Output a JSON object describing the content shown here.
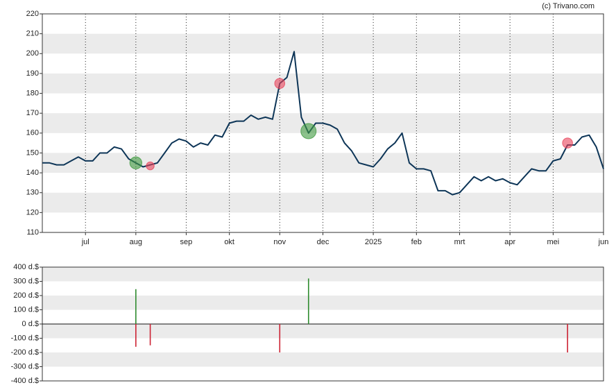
{
  "credit": "(c) Trivano.com",
  "chart_data": [
    {
      "type": "line",
      "color": "#0d3557",
      "grid": true,
      "categories": [
        null,
        null,
        null,
        null,
        null,
        null,
        "jul",
        null,
        null,
        null,
        null,
        null,
        null,
        "aug",
        null,
        null,
        null,
        null,
        null,
        null,
        "sep",
        null,
        null,
        null,
        null,
        null,
        "okt",
        null,
        null,
        null,
        null,
        null,
        null,
        "nov",
        null,
        null,
        null,
        null,
        null,
        "dec",
        null,
        null,
        null,
        null,
        null,
        null,
        "2025",
        null,
        null,
        null,
        null,
        null,
        "feb",
        null,
        null,
        null,
        null,
        null,
        "mrt",
        null,
        null,
        null,
        null,
        null,
        null,
        "apr",
        null,
        null,
        null,
        null,
        null,
        "mei",
        null,
        null,
        null,
        null,
        null,
        null,
        "jun"
      ],
      "values": [
        145,
        145,
        144,
        144,
        146,
        148,
        146,
        146,
        150,
        150,
        153,
        152,
        147,
        145,
        143,
        144,
        145,
        150,
        155,
        157,
        156,
        153,
        155,
        154,
        159,
        158,
        165,
        166,
        166,
        169,
        167,
        168,
        167,
        185,
        188,
        201,
        168,
        160,
        165,
        165,
        164,
        162,
        155,
        151,
        145,
        144,
        143,
        147,
        152,
        155,
        160,
        145,
        142,
        142,
        141,
        131,
        131,
        129,
        130,
        134,
        138,
        136,
        138,
        136,
        137,
        135,
        134,
        138,
        142,
        141,
        141,
        146,
        147,
        154,
        154,
        158,
        159,
        153,
        142
      ],
      "buys": {
        "color": "#3f9a3f",
        "values": [
          null,
          null,
          null,
          null,
          null,
          null,
          null,
          null,
          null,
          null,
          null,
          null,
          null,
          145,
          null,
          null,
          null,
          null,
          null,
          null,
          null,
          null,
          null,
          null,
          null,
          null,
          null,
          null,
          null,
          null,
          null,
          null,
          null,
          null,
          null,
          null,
          null,
          161,
          null,
          null,
          null,
          null,
          null,
          null,
          null,
          null,
          null,
          null,
          null,
          null,
          null,
          null,
          null,
          null,
          null,
          null,
          null,
          null,
          null,
          null,
          null,
          null,
          null,
          null,
          null,
          null,
          null,
          null,
          null,
          null,
          null,
          null,
          null,
          null,
          null,
          null,
          null,
          null,
          null
        ]
      },
      "sells": {
        "color": "#e8425a",
        "values": [
          null,
          null,
          null,
          null,
          null,
          null,
          null,
          null,
          null,
          null,
          null,
          null,
          null,
          null,
          null,
          143.5,
          null,
          null,
          null,
          null,
          null,
          null,
          null,
          null,
          null,
          null,
          null,
          null,
          null,
          null,
          null,
          null,
          null,
          185,
          null,
          null,
          null,
          null,
          null,
          null,
          null,
          null,
          null,
          null,
          null,
          null,
          null,
          null,
          null,
          null,
          null,
          null,
          null,
          null,
          null,
          null,
          null,
          null,
          null,
          null,
          null,
          null,
          null,
          null,
          null,
          null,
          null,
          null,
          null,
          null,
          null,
          null,
          null,
          155,
          null,
          null,
          null,
          null,
          null
        ]
      },
      "ylim": [
        110,
        220
      ],
      "yticks": [
        110,
        120,
        130,
        140,
        150,
        160,
        170,
        180,
        190,
        200,
        210,
        220
      ]
    },
    {
      "type": "bar",
      "series": [
        {
          "color": "#2e8b2e",
          "values": [
            null,
            null,
            null,
            null,
            null,
            null,
            null,
            null,
            null,
            null,
            null,
            null,
            null,
            245,
            null,
            null,
            null,
            null,
            null,
            null,
            null,
            null,
            null,
            null,
            null,
            null,
            null,
            null,
            null,
            null,
            null,
            null,
            null,
            null,
            null,
            null,
            null,
            320,
            null,
            null,
            null,
            null,
            null,
            null,
            null,
            null,
            null,
            null,
            null,
            null,
            null,
            null,
            null,
            null,
            null,
            null,
            null,
            null,
            null,
            null,
            null,
            null,
            null,
            null,
            null,
            null,
            null,
            null,
            null,
            null,
            null,
            null,
            null,
            null,
            null,
            null,
            null,
            null,
            null
          ]
        },
        {
          "color": "#cc2233",
          "values": [
            null,
            null,
            null,
            null,
            null,
            null,
            null,
            null,
            null,
            null,
            null,
            null,
            null,
            -160,
            null,
            -150,
            null,
            null,
            null,
            null,
            null,
            null,
            null,
            null,
            null,
            null,
            null,
            null,
            null,
            null,
            null,
            null,
            null,
            -200,
            null,
            null,
            null,
            null,
            null,
            null,
            null,
            null,
            null,
            null,
            null,
            null,
            null,
            null,
            null,
            null,
            null,
            null,
            null,
            null,
            null,
            null,
            null,
            null,
            null,
            null,
            null,
            null,
            null,
            null,
            null,
            null,
            null,
            null,
            null,
            null,
            null,
            null,
            null,
            -200,
            null,
            null,
            null,
            null,
            null
          ]
        }
      ],
      "ylim": [
        -400,
        400
      ],
      "yticks": [
        {
          "value": -400,
          "label": "-400 d.$"
        },
        {
          "value": -300,
          "label": "-300 d.$"
        },
        {
          "value": -200,
          "label": "-200 d.$"
        },
        {
          "value": -100,
          "label": "-100 d.$"
        },
        {
          "value": 0,
          "label": "0 d.$"
        },
        {
          "value": 100,
          "label": "100 d.$"
        },
        {
          "value": 200,
          "label": "200 d.$"
        },
        {
          "value": 300,
          "label": "300 d.$"
        },
        {
          "value": 400,
          "label": "400 d.$"
        }
      ]
    }
  ]
}
